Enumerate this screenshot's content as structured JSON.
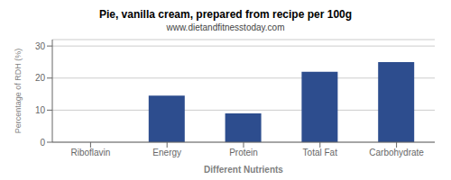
{
  "chart_data": {
    "type": "bar",
    "title": "Pie, vanilla cream, prepared from recipe per 100g",
    "subtitle": "www.dietandfitnesstoday.com",
    "xlabel": "Different Nutrients",
    "ylabel": "Percentage of RDH (%)",
    "categories": [
      "Riboflavin",
      "Energy",
      "Protein",
      "Total Fat",
      "Carbohydrate"
    ],
    "values": [
      0,
      14.5,
      9.0,
      22.0,
      25.0
    ],
    "color": "#2d4d8e",
    "ylim": [
      0,
      32
    ],
    "yticks": [
      0,
      10,
      20,
      30
    ],
    "grid": true
  }
}
